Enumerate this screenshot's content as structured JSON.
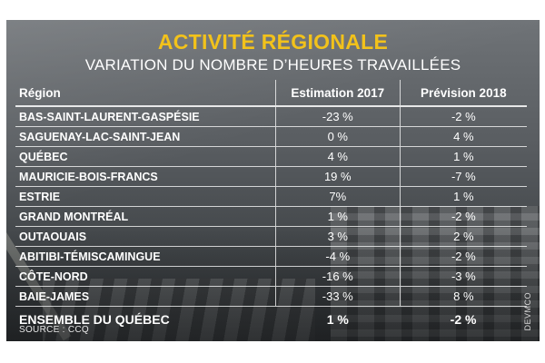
{
  "title": "ACTIVITÉ RÉGIONALE",
  "subtitle": "VARIATION DU NOMBRE D’HEURES TRAVAILLÉES",
  "source": "SOURCE : CCQ",
  "credit": "DEVMCO",
  "colors": {
    "title": "#f2c21b",
    "text": "#ffffff",
    "background": "#55595d"
  },
  "chart_data": {
    "type": "table",
    "title": "ACTIVITÉ RÉGIONALE",
    "subtitle": "VARIATION DU NOMBRE D’HEURES TRAVAILLÉES",
    "columns": [
      "Région",
      "Estimation 2017",
      "Prévision 2018"
    ],
    "rows": [
      {
        "region": "BAS-SAINT-LAURENT-GASPÉSIE",
        "est2017": "-23 %",
        "prev2018": "-2 %"
      },
      {
        "region": "SAGUENAY-LAC-SAINT-JEAN",
        "est2017": "0 %",
        "prev2018": "4 %"
      },
      {
        "region": "QUÉBEC",
        "est2017": "4 %",
        "prev2018": "1 %"
      },
      {
        "region": "MAURICIE-BOIS-FRANCS",
        "est2017": "19 %",
        "prev2018": "-7 %"
      },
      {
        "region": "ESTRIE",
        "est2017": "7%",
        "prev2018": "1 %"
      },
      {
        "region": "GRAND MONTRÉAL",
        "est2017": "1 %",
        "prev2018": "-2 %"
      },
      {
        "region": "OUTAOUAIS",
        "est2017": "3 %",
        "prev2018": "2 %"
      },
      {
        "region": "ABITIBI-TÉMISCAMINGUE",
        "est2017": "-4 %",
        "prev2018": "-2 %"
      },
      {
        "region": "CÔTE-NORD",
        "est2017": "-16 %",
        "prev2018": "-3 %"
      },
      {
        "region": "BAIE-JAMES",
        "est2017": "-33 %",
        "prev2018": "8 %"
      }
    ],
    "total": {
      "region": "ENSEMBLE DU QUÉBEC",
      "est2017": "1 %",
      "prev2018": "-2 %"
    }
  }
}
